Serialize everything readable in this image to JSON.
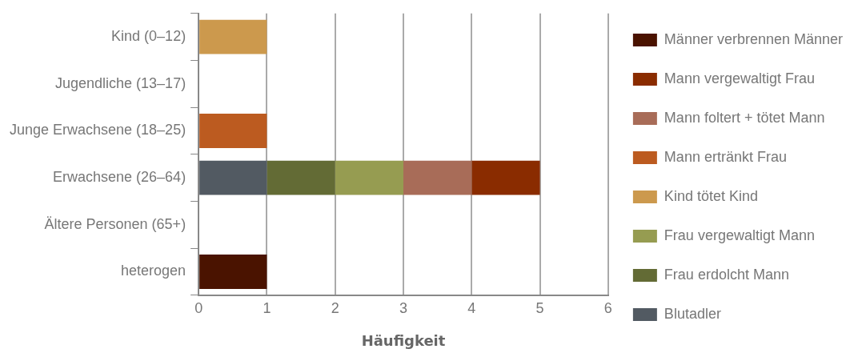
{
  "chart_data": {
    "type": "bar",
    "orientation": "horizontal",
    "stacked": true,
    "categories": [
      "Kind (0–12)",
      "Jugendliche (13–17)",
      "Junge Erwachsene (18–25)",
      "Erwachsene (26–64)",
      "Ältere Personen (65+)",
      "heterogen"
    ],
    "series": [
      {
        "name": "Blutadler",
        "color": "#525a62",
        "values": [
          null,
          null,
          null,
          1,
          null,
          null
        ]
      },
      {
        "name": "Frau erdolcht Mann",
        "color": "#636b35",
        "values": [
          null,
          null,
          null,
          1,
          null,
          null
        ]
      },
      {
        "name": "Frau vergewaltigt Mann",
        "color": "#969c51",
        "values": [
          null,
          null,
          null,
          1,
          null,
          null
        ]
      },
      {
        "name": "Kind tötet Kind",
        "color": "#cc994d",
        "values": [
          1,
          null,
          null,
          null,
          null,
          null
        ]
      },
      {
        "name": "Mann ertränkt Frau",
        "color": "#bc5b20",
        "values": [
          null,
          null,
          1,
          null,
          null,
          null
        ]
      },
      {
        "name": "Mann foltert + tötet Mann",
        "color": "#a86c58",
        "values": [
          null,
          null,
          null,
          1,
          null,
          null
        ]
      },
      {
        "name": "Mann vergewaltigt Frau",
        "color": "#8a2c00",
        "values": [
          null,
          null,
          null,
          1,
          null,
          null
        ]
      },
      {
        "name": "Männer verbrennen Männer",
        "color": "#4a1300",
        "values": [
          null,
          null,
          null,
          null,
          null,
          1
        ]
      }
    ],
    "xlabel": "Häufigkeit",
    "xlim": [
      0,
      6
    ],
    "xticks": [
      0,
      1,
      2,
      3,
      4,
      5,
      6
    ],
    "grid": "x",
    "legend": "right"
  }
}
